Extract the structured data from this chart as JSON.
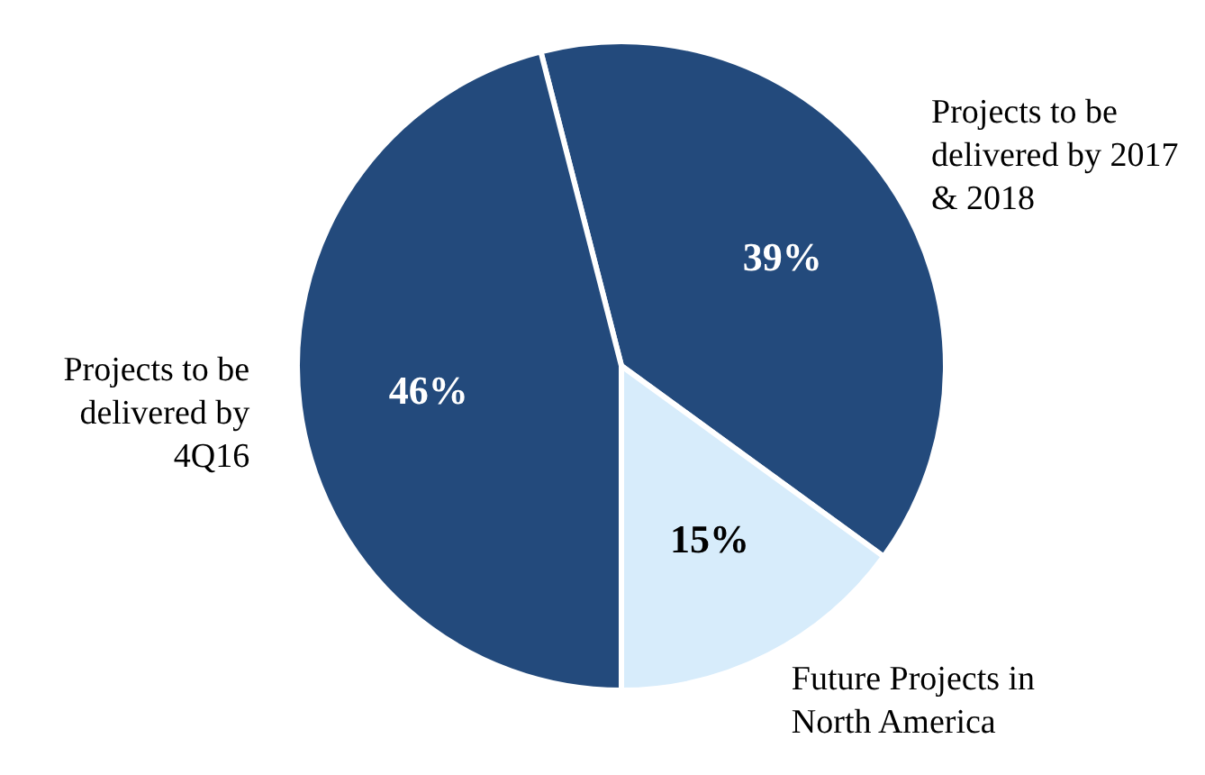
{
  "chart_data": {
    "type": "pie",
    "categories": [
      "Projects to be delivered by 2017 & 2018",
      "Future Projects in North America",
      "Projects to be delivered by 4Q16"
    ],
    "values": [
      39,
      15,
      46
    ],
    "value_labels": [
      "39%",
      "15%",
      "46%"
    ],
    "colors": [
      "#234a7c",
      "#d7ecfb",
      "#234a7c"
    ]
  }
}
